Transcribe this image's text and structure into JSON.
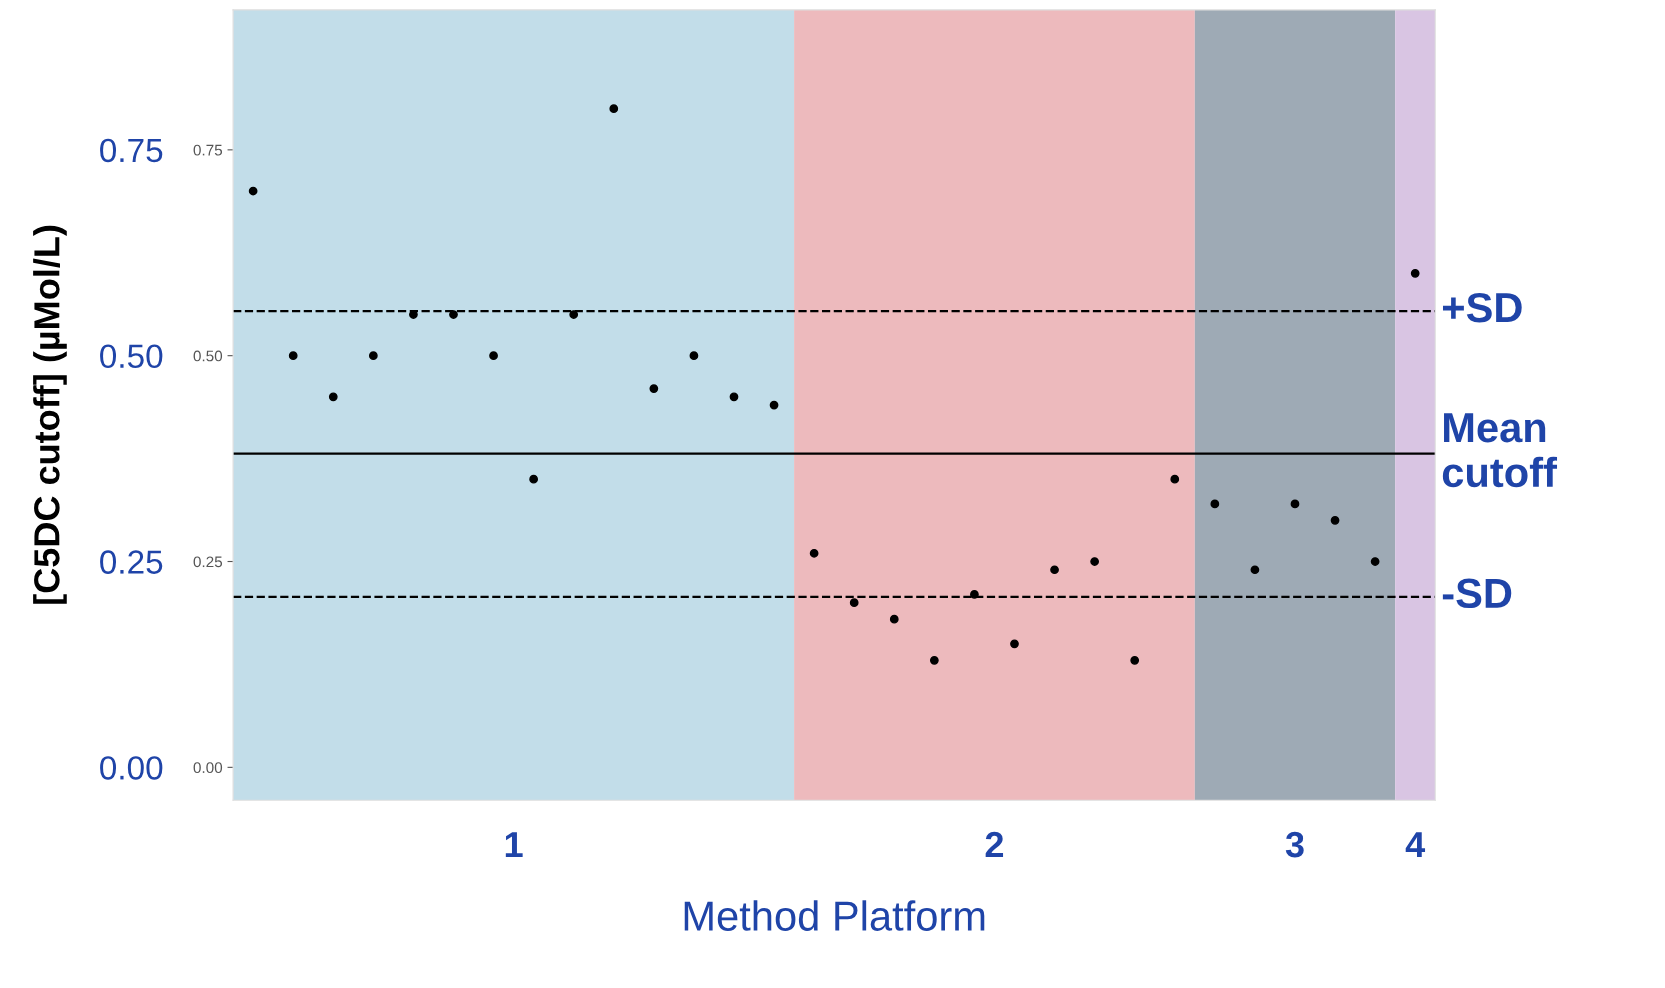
{
  "chart_data": {
    "type": "scatter",
    "xlabel": "Method Platform",
    "ylabel": "[C5DC cutoff] (µMol/L)",
    "categories": [
      null,
      null,
      null,
      null,
      null,
      null,
      null,
      null,
      null,
      null,
      null,
      null,
      null,
      null,
      null,
      null,
      null,
      null,
      null,
      null,
      null,
      null,
      null,
      null,
      null,
      null,
      null,
      null,
      null,
      null
    ],
    "series": [
      {
        "color": "#000000",
        "values": [
          0.7,
          0.5,
          0.45,
          0.5,
          0.55,
          0.55,
          0.5,
          0.35,
          0.55,
          0.8,
          0.46,
          0.5,
          0.45,
          0.44,
          null,
          null,
          null,
          null,
          null,
          null,
          null,
          null,
          null,
          null,
          null,
          null,
          null,
          null,
          null,
          null
        ]
      },
      {
        "color": "#000000",
        "values": [
          null,
          null,
          null,
          null,
          null,
          null,
          null,
          null,
          null,
          null,
          null,
          null,
          null,
          null,
          0.26,
          0.2,
          0.18,
          0.13,
          0.21,
          0.15,
          0.24,
          0.25,
          0.13,
          0.35,
          null,
          null,
          null,
          null,
          null,
          null
        ]
      },
      {
        "color": "#000000",
        "values": [
          null,
          null,
          null,
          null,
          null,
          null,
          null,
          null,
          null,
          null,
          null,
          null,
          null,
          null,
          null,
          null,
          null,
          null,
          null,
          null,
          null,
          null,
          null,
          null,
          0.32,
          0.24,
          0.32,
          0.3,
          0.25,
          null
        ]
      },
      {
        "color": "#000000",
        "values": [
          null,
          null,
          null,
          null,
          null,
          null,
          null,
          null,
          null,
          null,
          null,
          null,
          null,
          null,
          null,
          null,
          null,
          null,
          null,
          null,
          null,
          null,
          null,
          null,
          null,
          null,
          null,
          null,
          null,
          0.6
        ]
      }
    ],
    "annotations": [
      "1",
      "2",
      "3",
      "4"
    ],
    "marker": "circle",
    "ylim": [
      -0.04,
      0.92
    ],
    "yticks": [
      {
        "value": 0,
        "label": "0.00"
      },
      {
        "value": 0.25,
        "label": "0.25"
      },
      {
        "value": 0.5,
        "label": "0.50"
      },
      {
        "value": 0.75,
        "label": "0.75"
      }
    ],
    "ref_lines": [
      {
        "axis": "y",
        "value": 0.554,
        "label": "+SD",
        "color": "#000000",
        "line_style": "dashed"
      },
      {
        "axis": "y",
        "value": 0.381,
        "label": "Mean\ncutoff",
        "color": "#000000",
        "line_style": "solid"
      },
      {
        "axis": "y",
        "value": 0.207,
        "label": "-SD",
        "color": "#000000",
        "line_style": "dashed"
      }
    ]
  }
}
